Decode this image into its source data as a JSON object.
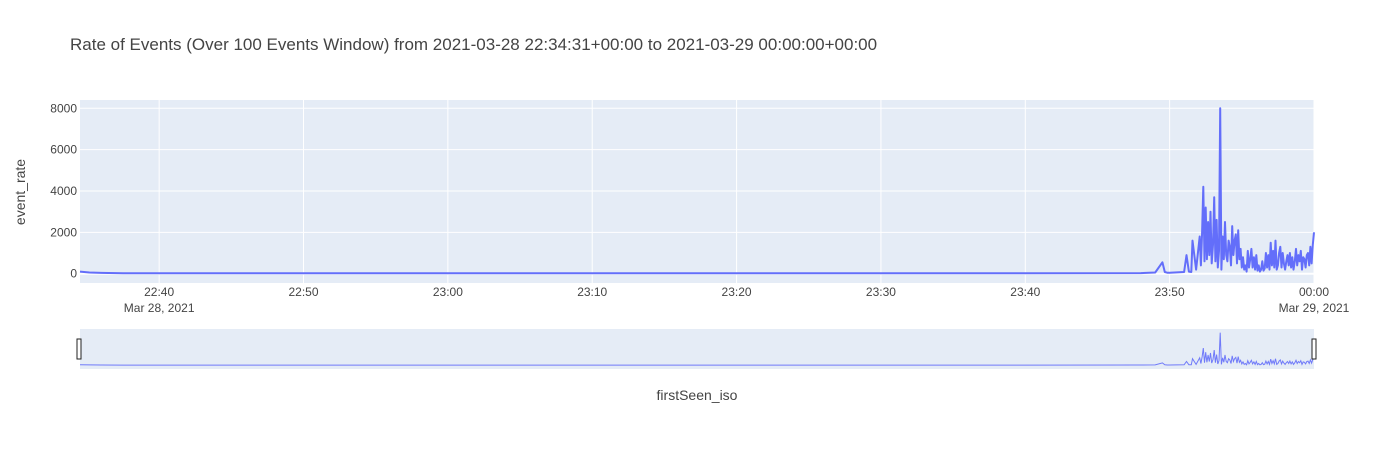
{
  "chart_data": {
    "type": "line",
    "title": "Rate of Events (Over 100 Events Window) from 2021-03-28 22:34:31+00:00 to 2021-03-29 00:00:00+00:00",
    "xlabel": "firstSeen_iso",
    "ylabel": "event_rate",
    "xlim": [
      "2021-03-28 22:34:31",
      "2021-03-29 00:00:00"
    ],
    "ylim": [
      -450,
      8400
    ],
    "x_ticks": [
      {
        "value": "2021-03-28 22:40:00",
        "label": "22:40",
        "sublabel": "Mar 28, 2021"
      },
      {
        "value": "2021-03-28 22:50:00",
        "label": "22:50",
        "sublabel": ""
      },
      {
        "value": "2021-03-28 23:00:00",
        "label": "23:00",
        "sublabel": ""
      },
      {
        "value": "2021-03-28 23:10:00",
        "label": "23:10",
        "sublabel": ""
      },
      {
        "value": "2021-03-28 23:20:00",
        "label": "23:20",
        "sublabel": ""
      },
      {
        "value": "2021-03-28 23:30:00",
        "label": "23:30",
        "sublabel": ""
      },
      {
        "value": "2021-03-28 23:40:00",
        "label": "23:40",
        "sublabel": ""
      },
      {
        "value": "2021-03-28 23:50:00",
        "label": "23:50",
        "sublabel": ""
      },
      {
        "value": "2021-03-29 00:00:00",
        "label": "00:00",
        "sublabel": "Mar 29, 2021"
      }
    ],
    "y_ticks": [
      {
        "value": 0,
        "label": "0"
      },
      {
        "value": 2000,
        "label": "2000"
      },
      {
        "value": 4000,
        "label": "4000"
      },
      {
        "value": 6000,
        "label": "6000"
      },
      {
        "value": 8000,
        "label": "8000"
      }
    ],
    "grid": true,
    "legend": "none",
    "range_slider": true,
    "colors": {
      "line": "#636efa",
      "plot_bg": "#e5ecf6",
      "grid": "#ffffff",
      "paper": "#ffffff"
    },
    "series": [
      {
        "x": [
          "2021-03-28 22:34:31",
          "2021-03-28 22:35:10",
          "2021-03-28 22:36:00",
          "2021-03-28 22:37:30",
          "2021-03-28 22:40:00",
          "2021-03-28 23:00:00",
          "2021-03-28 23:20:00",
          "2021-03-28 23:40:00",
          "2021-03-28 23:48:00",
          "2021-03-28 23:49:00",
          "2021-03-28 23:49:30",
          "2021-03-28 23:49:40",
          "2021-03-28 23:49:50",
          "2021-03-28 23:50:00",
          "2021-03-28 23:51:00",
          "2021-03-28 23:51:10",
          "2021-03-28 23:51:20",
          "2021-03-28 23:51:30",
          "2021-03-28 23:51:35",
          "2021-03-28 23:51:50",
          "2021-03-28 23:52:05",
          "2021-03-28 23:52:10",
          "2021-03-28 23:52:15",
          "2021-03-28 23:52:20",
          "2021-03-28 23:52:25",
          "2021-03-28 23:52:30",
          "2021-03-28 23:52:35",
          "2021-03-28 23:52:40",
          "2021-03-28 23:52:45",
          "2021-03-28 23:52:50",
          "2021-03-28 23:52:55",
          "2021-03-28 23:53:00",
          "2021-03-28 23:53:05",
          "2021-03-28 23:53:10",
          "2021-03-28 23:53:15",
          "2021-03-28 23:53:20",
          "2021-03-28 23:53:25",
          "2021-03-28 23:53:30",
          "2021-03-28 23:53:35",
          "2021-03-28 23:53:40",
          "2021-03-28 23:53:45",
          "2021-03-28 23:53:50",
          "2021-03-28 23:53:55",
          "2021-03-28 23:54:00",
          "2021-03-28 23:54:05",
          "2021-03-28 23:54:10",
          "2021-03-28 23:54:15",
          "2021-03-28 23:54:20",
          "2021-03-28 23:54:25",
          "2021-03-28 23:54:30",
          "2021-03-28 23:54:35",
          "2021-03-28 23:54:40",
          "2021-03-28 23:54:45",
          "2021-03-28 23:54:50",
          "2021-03-28 23:54:55",
          "2021-03-28 23:55:00",
          "2021-03-28 23:55:05",
          "2021-03-28 23:55:10",
          "2021-03-28 23:55:15",
          "2021-03-28 23:55:20",
          "2021-03-28 23:55:25",
          "2021-03-28 23:55:30",
          "2021-03-28 23:55:35",
          "2021-03-28 23:55:40",
          "2021-03-28 23:55:45",
          "2021-03-28 23:55:50",
          "2021-03-28 23:55:55",
          "2021-03-28 23:56:00",
          "2021-03-28 23:56:05",
          "2021-03-28 23:56:10",
          "2021-03-28 23:56:15",
          "2021-03-28 23:56:20",
          "2021-03-28 23:56:25",
          "2021-03-28 23:56:30",
          "2021-03-28 23:56:35",
          "2021-03-28 23:56:40",
          "2021-03-28 23:56:45",
          "2021-03-28 23:56:50",
          "2021-03-28 23:56:55",
          "2021-03-28 23:57:00",
          "2021-03-28 23:57:05",
          "2021-03-28 23:57:10",
          "2021-03-28 23:57:15",
          "2021-03-28 23:57:20",
          "2021-03-28 23:57:25",
          "2021-03-28 23:57:30",
          "2021-03-28 23:57:35",
          "2021-03-28 23:57:40",
          "2021-03-28 23:57:45",
          "2021-03-28 23:57:50",
          "2021-03-28 23:57:55",
          "2021-03-28 23:58:00",
          "2021-03-28 23:58:05",
          "2021-03-28 23:58:10",
          "2021-03-28 23:58:15",
          "2021-03-28 23:58:20",
          "2021-03-28 23:58:25",
          "2021-03-28 23:58:30",
          "2021-03-28 23:58:35",
          "2021-03-28 23:58:40",
          "2021-03-28 23:58:45",
          "2021-03-28 23:58:50",
          "2021-03-28 23:58:55",
          "2021-03-28 23:59:00",
          "2021-03-28 23:59:05",
          "2021-03-28 23:59:10",
          "2021-03-28 23:59:15",
          "2021-03-28 23:59:20",
          "2021-03-28 23:59:25",
          "2021-03-28 23:59:30",
          "2021-03-28 23:59:35",
          "2021-03-28 23:59:40",
          "2021-03-28 23:59:45",
          "2021-03-28 23:59:50",
          "2021-03-28 23:59:55",
          "2021-03-29 00:00:00"
        ],
        "y": [
          100,
          60,
          40,
          20,
          20,
          20,
          20,
          20,
          30,
          60,
          550,
          80,
          50,
          50,
          80,
          900,
          100,
          80,
          1600,
          200,
          1800,
          400,
          2000,
          4200,
          600,
          3200,
          700,
          2500,
          900,
          3000,
          500,
          1400,
          3700,
          600,
          2600,
          300,
          1100,
          8000,
          200,
          1800,
          700,
          2500,
          900,
          600,
          1600,
          1300,
          400,
          2300,
          900,
          1600,
          1900,
          500,
          2100,
          700,
          1200,
          300,
          800,
          200,
          400,
          100,
          1100,
          300,
          700,
          1200,
          300,
          800,
          200,
          900,
          150,
          400,
          100,
          200,
          600,
          150,
          250,
          1000,
          300,
          900,
          200,
          1500,
          400,
          1100,
          300,
          1600,
          200,
          400,
          1000,
          1300,
          300,
          1000,
          500,
          200,
          600,
          900,
          400,
          1000,
          300,
          800,
          200,
          600,
          1200,
          400,
          900,
          600,
          1100,
          200,
          800,
          700,
          300,
          900,
          1000,
          400,
          1300,
          500,
          1400,
          2000
        ]
      }
    ]
  }
}
